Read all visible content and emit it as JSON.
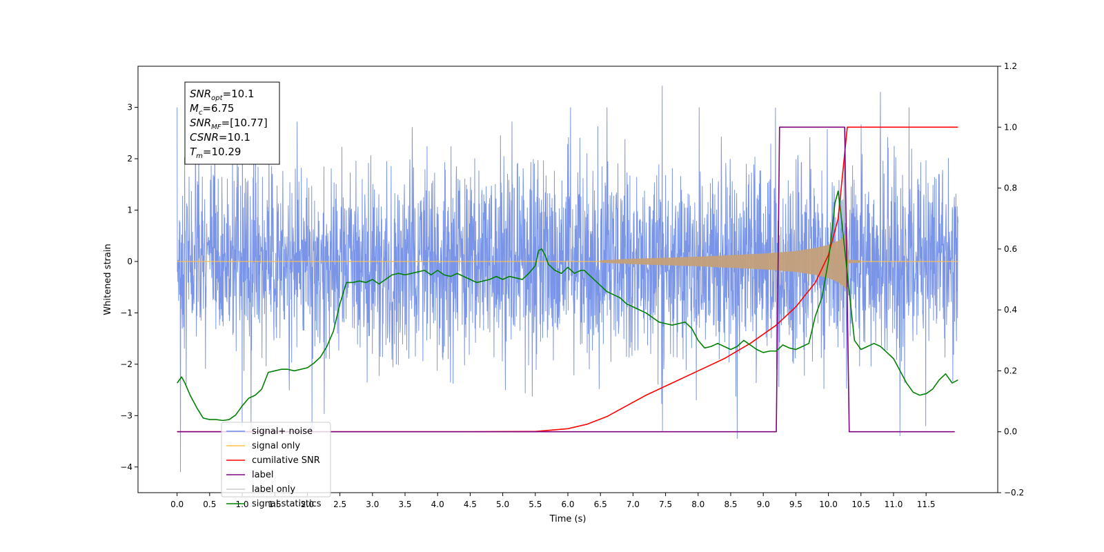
{
  "chart_data": {
    "type": "line",
    "xlabel": "Time (s)",
    "ylabel_left": "Whitened strain",
    "ylabel_right": "",
    "xlim": [
      -0.6,
      12.6
    ],
    "ylim_left": [
      -4.5,
      3.8
    ],
    "ylim_right": [
      -0.2,
      1.2
    ],
    "x_ticks": [
      0.0,
      0.5,
      1.0,
      1.5,
      2.0,
      2.5,
      3.0,
      3.5,
      4.0,
      4.5,
      5.0,
      5.5,
      6.0,
      6.5,
      7.0,
      7.5,
      8.0,
      8.5,
      9.0,
      9.5,
      10.0,
      10.5,
      11.0,
      11.5
    ],
    "x_tick_labels": [
      "0.0",
      "0.5",
      "1.0",
      "1.5",
      "2.0",
      "2.5",
      "3.0",
      "3.5",
      "4.0",
      "4.5",
      "5.0",
      "5.5",
      "6.0",
      "6.5",
      "7.0",
      "7.5",
      "8.0",
      "8.5",
      "9.0",
      "9.5",
      "10.0",
      "10.5",
      "11.0",
      "11.5"
    ],
    "y_ticks_left": [
      -4,
      -3,
      -2,
      -1,
      0,
      1,
      2,
      3
    ],
    "y_tick_labels_left": [
      "−4",
      "−3",
      "−2",
      "−1",
      "0",
      "1",
      "2",
      "3"
    ],
    "y_ticks_right": [
      -0.2,
      0.0,
      0.2,
      0.4,
      0.6,
      0.8,
      1.0,
      1.2
    ],
    "y_tick_labels_right": [
      "−0.2",
      "0.0",
      "0.2",
      "0.4",
      "0.6",
      "0.8",
      "1.0",
      "1.2"
    ],
    "grid": false,
    "legend_position": "lower-left",
    "legend": [
      {
        "label": "signal+ noise",
        "color": "#6b8ae6"
      },
      {
        "label": "signal only",
        "color": "#ffbf4d"
      },
      {
        "label": "cumilative SNR",
        "color": "#ff0000"
      },
      {
        "label": "label",
        "color": "#800080"
      },
      {
        "label": "label only",
        "color": "#cccccc"
      },
      {
        "label": "signal statistics",
        "color": "#008000"
      }
    ],
    "annotation": {
      "lines": [
        {
          "base": "SNR",
          "sub": "opt",
          "rest": "=10.1"
        },
        {
          "base": "M",
          "sub": "c",
          "rest": "=6.75"
        },
        {
          "base": "SNR",
          "sub": "MF",
          "rest": "=[10.77]"
        },
        {
          "base": "CSNR",
          "sub": "",
          "rest": "=10.1"
        },
        {
          "base": "T",
          "sub": "m",
          "rest": "=10.29"
        }
      ]
    },
    "noise_series": {
      "name": "signal+ noise",
      "axis": "left",
      "x_start": 0.0,
      "x_end": 11.99,
      "typical_sigma": 0.9,
      "visible_extremes": [
        {
          "x": 0.05,
          "y": -4.1
        },
        {
          "x": 7.45,
          "y": 3.42
        },
        {
          "x": 8.6,
          "y": -3.45
        },
        {
          "x": 11.1,
          "y": -3.4
        },
        {
          "x": 10.8,
          "y": 3.3
        },
        {
          "x": 1.0,
          "y": -3.2
        }
      ]
    },
    "signal_series": {
      "name": "signal only",
      "axis": "left",
      "x_start": 0.0,
      "x_end": 11.99,
      "envelope": [
        [
          6.5,
          0.02
        ],
        [
          7.0,
          0.05
        ],
        [
          7.5,
          0.07
        ],
        [
          8.0,
          0.09
        ],
        [
          8.5,
          0.12
        ],
        [
          9.0,
          0.15
        ],
        [
          9.5,
          0.2
        ],
        [
          9.8,
          0.26
        ],
        [
          10.0,
          0.32
        ],
        [
          10.15,
          0.4
        ],
        [
          10.25,
          0.5
        ],
        [
          10.29,
          0.55
        ],
        [
          10.31,
          0.03
        ],
        [
          10.5,
          0.02
        ]
      ]
    },
    "cumulative_snr": {
      "name": "cumilative SNR",
      "axis": "right",
      "points": [
        [
          0.0,
          0.0
        ],
        [
          4.5,
          0.0
        ],
        [
          5.5,
          0.001
        ],
        [
          6.0,
          0.01
        ],
        [
          6.3,
          0.025
        ],
        [
          6.6,
          0.05
        ],
        [
          6.9,
          0.085
        ],
        [
          7.2,
          0.12
        ],
        [
          7.6,
          0.16
        ],
        [
          8.0,
          0.2
        ],
        [
          8.4,
          0.24
        ],
        [
          8.8,
          0.29
        ],
        [
          9.2,
          0.35
        ],
        [
          9.5,
          0.41
        ],
        [
          9.8,
          0.49
        ],
        [
          10.0,
          0.58
        ],
        [
          10.15,
          0.7
        ],
        [
          10.29,
          1.0
        ],
        [
          11.99,
          1.0
        ]
      ]
    },
    "label_series": {
      "name": "label",
      "axis": "right",
      "points": [
        [
          0.0,
          0.0
        ],
        [
          9.2,
          0.0
        ],
        [
          9.25,
          1.0
        ],
        [
          10.25,
          1.0
        ],
        [
          10.32,
          0.0
        ],
        [
          11.94,
          0.0
        ]
      ]
    },
    "statistics_series": {
      "name": "signal statistics",
      "axis": "right",
      "points": [
        [
          0.0,
          0.16
        ],
        [
          0.07,
          0.18
        ],
        [
          0.12,
          0.16
        ],
        [
          0.2,
          0.12
        ],
        [
          0.3,
          0.08
        ],
        [
          0.4,
          0.045
        ],
        [
          0.5,
          0.04
        ],
        [
          0.6,
          0.04
        ],
        [
          0.7,
          0.037
        ],
        [
          0.8,
          0.04
        ],
        [
          0.9,
          0.055
        ],
        [
          1.0,
          0.085
        ],
        [
          1.1,
          0.11
        ],
        [
          1.2,
          0.12
        ],
        [
          1.3,
          0.14
        ],
        [
          1.4,
          0.195
        ],
        [
          1.5,
          0.2
        ],
        [
          1.6,
          0.205
        ],
        [
          1.7,
          0.205
        ],
        [
          1.8,
          0.2
        ],
        [
          2.0,
          0.21
        ],
        [
          2.1,
          0.225
        ],
        [
          2.2,
          0.245
        ],
        [
          2.3,
          0.28
        ],
        [
          2.4,
          0.33
        ],
        [
          2.5,
          0.42
        ],
        [
          2.6,
          0.49
        ],
        [
          2.7,
          0.49
        ],
        [
          2.8,
          0.495
        ],
        [
          2.9,
          0.49
        ],
        [
          3.0,
          0.5
        ],
        [
          3.1,
          0.485
        ],
        [
          3.2,
          0.5
        ],
        [
          3.3,
          0.515
        ],
        [
          3.4,
          0.52
        ],
        [
          3.5,
          0.515
        ],
        [
          3.6,
          0.52
        ],
        [
          3.8,
          0.53
        ],
        [
          3.9,
          0.515
        ],
        [
          4.0,
          0.53
        ],
        [
          4.1,
          0.515
        ],
        [
          4.2,
          0.51
        ],
        [
          4.3,
          0.52
        ],
        [
          4.4,
          0.51
        ],
        [
          4.5,
          0.5
        ],
        [
          4.6,
          0.49
        ],
        [
          4.7,
          0.495
        ],
        [
          4.8,
          0.5
        ],
        [
          4.9,
          0.51
        ],
        [
          5.0,
          0.5
        ],
        [
          5.1,
          0.51
        ],
        [
          5.2,
          0.505
        ],
        [
          5.3,
          0.5
        ],
        [
          5.4,
          0.52
        ],
        [
          5.5,
          0.545
        ],
        [
          5.55,
          0.595
        ],
        [
          5.6,
          0.6
        ],
        [
          5.65,
          0.58
        ],
        [
          5.7,
          0.55
        ],
        [
          5.8,
          0.53
        ],
        [
          5.9,
          0.52
        ],
        [
          6.0,
          0.54
        ],
        [
          6.1,
          0.52
        ],
        [
          6.2,
          0.53
        ],
        [
          6.25,
          0.53
        ],
        [
          6.35,
          0.51
        ],
        [
          6.5,
          0.48
        ],
        [
          6.6,
          0.46
        ],
        [
          6.7,
          0.45
        ],
        [
          6.8,
          0.44
        ],
        [
          6.9,
          0.42
        ],
        [
          7.0,
          0.41
        ],
        [
          7.1,
          0.4
        ],
        [
          7.2,
          0.39
        ],
        [
          7.3,
          0.375
        ],
        [
          7.4,
          0.36
        ],
        [
          7.5,
          0.355
        ],
        [
          7.6,
          0.35
        ],
        [
          7.7,
          0.355
        ],
        [
          7.8,
          0.36
        ],
        [
          7.9,
          0.34
        ],
        [
          8.0,
          0.3
        ],
        [
          8.1,
          0.275
        ],
        [
          8.2,
          0.28
        ],
        [
          8.3,
          0.29
        ],
        [
          8.4,
          0.28
        ],
        [
          8.5,
          0.27
        ],
        [
          8.6,
          0.28
        ],
        [
          8.7,
          0.3
        ],
        [
          8.8,
          0.285
        ],
        [
          8.9,
          0.27
        ],
        [
          9.0,
          0.26
        ],
        [
          9.1,
          0.265
        ],
        [
          9.2,
          0.265
        ],
        [
          9.3,
          0.285
        ],
        [
          9.4,
          0.275
        ],
        [
          9.5,
          0.27
        ],
        [
          9.6,
          0.28
        ],
        [
          9.7,
          0.29
        ],
        [
          9.8,
          0.38
        ],
        [
          9.9,
          0.44
        ],
        [
          10.0,
          0.56
        ],
        [
          10.05,
          0.65
        ],
        [
          10.1,
          0.75
        ],
        [
          10.15,
          0.79
        ],
        [
          10.2,
          0.7
        ],
        [
          10.3,
          0.5
        ],
        [
          10.4,
          0.3
        ],
        [
          10.5,
          0.27
        ],
        [
          10.6,
          0.28
        ],
        [
          10.7,
          0.29
        ],
        [
          10.8,
          0.28
        ],
        [
          10.9,
          0.26
        ],
        [
          11.0,
          0.24
        ],
        [
          11.1,
          0.2
        ],
        [
          11.2,
          0.16
        ],
        [
          11.3,
          0.13
        ],
        [
          11.4,
          0.12
        ],
        [
          11.5,
          0.125
        ],
        [
          11.6,
          0.14
        ],
        [
          11.7,
          0.17
        ],
        [
          11.8,
          0.19
        ],
        [
          11.9,
          0.16
        ],
        [
          11.99,
          0.17
        ]
      ]
    }
  }
}
